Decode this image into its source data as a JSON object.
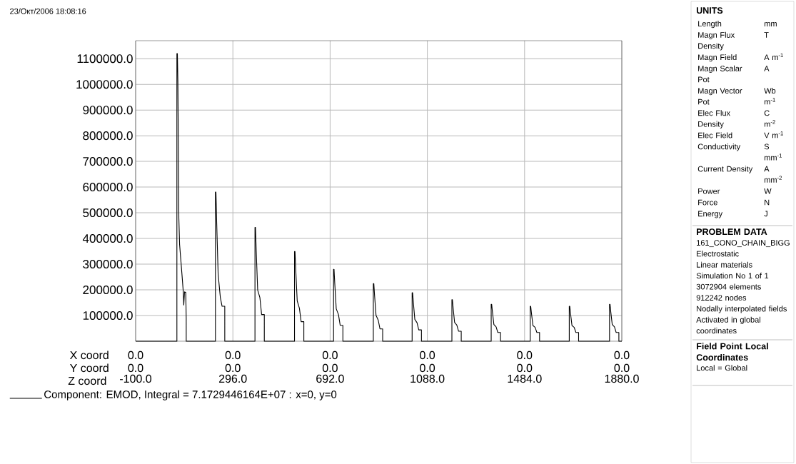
{
  "chart_data": [
    {
      "type": "line",
      "annotations": [
        "23/Окт/2006 18:08:16",
        "X coord",
        "0.0",
        "0.0",
        "0.0",
        "0.0",
        "0.0",
        "0.0",
        "Y coord",
        "0.0",
        "0.0",
        "0.0",
        "0.0",
        "0.0",
        "0.0"
      ],
      "xlabel": "Z coord",
      "xlim": [
        -100,
        1880
      ],
      "ylim": [
        0,
        1170000
      ],
      "xticks": [
        {
          "value": -100,
          "label": "-100.0"
        },
        {
          "value": 296,
          "label": "296.0"
        },
        {
          "value": 692,
          "label": "692.0"
        },
        {
          "value": 1088,
          "label": "1088.0"
        },
        {
          "value": 1484,
          "label": "1484.0"
        },
        {
          "value": 1880,
          "label": "1880.0"
        }
      ],
      "yticks": [
        {
          "value": 100000,
          "label": "100000.0"
        },
        {
          "value": 200000,
          "label": "200000.0"
        },
        {
          "value": 300000,
          "label": "300000.0"
        },
        {
          "value": 400000,
          "label": "400000.0"
        },
        {
          "value": 500000,
          "label": "500000.0"
        },
        {
          "value": 600000,
          "label": "600000.0"
        },
        {
          "value": 700000,
          "label": "700000.0"
        },
        {
          "value": 800000,
          "label": "800000.0"
        },
        {
          "value": 900000,
          "label": "900000.0"
        },
        {
          "value": 1000000,
          "label": "1000000.0"
        },
        {
          "value": 1100000,
          "label": "1100000.0"
        }
      ],
      "grid": true,
      "legend": "bottom",
      "marker": "none",
      "line_style": "solid",
      "series": [
        {
          "name": "Component: EMOD, Integral = 7.1729446164E+07 : x=0, y=0",
          "color": "#000000",
          "x": [
            -100,
            68,
            68,
            70,
            72,
            74,
            76,
            79,
            89,
            94,
            96,
            99,
            104,
            106,
            106,
            225,
            225,
            227,
            230,
            236,
            245,
            252,
            263,
            263,
            386,
            386,
            388,
            391,
            397,
            406,
            413,
            424,
            424,
            547,
            547,
            549,
            552,
            558,
            567,
            574,
            585,
            585,
            706,
            706,
            708,
            711,
            717,
            726,
            733,
            744,
            744,
            868,
            868,
            870,
            873,
            879,
            888,
            895,
            906,
            906,
            1026,
            1026,
            1028,
            1031,
            1037,
            1046,
            1053,
            1064,
            1064,
            1188,
            1188,
            1190,
            1193,
            1199,
            1208,
            1215,
            1226,
            1226,
            1348,
            1348,
            1350,
            1353,
            1359,
            1368,
            1375,
            1386,
            1386,
            1507,
            1507,
            1509,
            1512,
            1518,
            1527,
            1534,
            1545,
            1545,
            1666,
            1666,
            1668,
            1671,
            1677,
            1686,
            1693,
            1704,
            1704,
            1830,
            1830,
            1832,
            1835,
            1841,
            1850,
            1857,
            1868,
            1868,
            1880
          ],
          "values": [
            0,
            0,
            1120000,
            1120000,
            1010000,
            757000,
            479000,
            377000,
            256000,
            192000,
            141000,
            192000,
            190000,
            90000,
            0,
            0,
            581000,
            581000,
            465000,
            261000,
            170000,
            136000,
            136000,
            0,
            0,
            443000,
            443000,
            354000,
            199000,
            170000,
            104000,
            104000,
            0,
            0,
            349000,
            349000,
            279000,
            157000,
            128000,
            76000,
            76000,
            0,
            0,
            280000,
            280000,
            224000,
            126000,
            104000,
            62000,
            62000,
            0,
            0,
            224000,
            224000,
            179000,
            101000,
            82000,
            48000,
            48000,
            0,
            0,
            189000,
            189000,
            151000,
            85000,
            72000,
            44000,
            44000,
            0,
            0,
            162000,
            162000,
            130000,
            73000,
            63000,
            39000,
            39000,
            0,
            0,
            144000,
            144000,
            115000,
            65000,
            56000,
            34000,
            34000,
            0,
            0,
            136000,
            136000,
            109000,
            61000,
            54000,
            34000,
            34000,
            0,
            0,
            136000,
            136000,
            109000,
            61000,
            54000,
            34000,
            34000,
            0,
            0,
            144000,
            144000,
            115000,
            65000,
            56000,
            34000,
            34000,
            0,
            0
          ]
        }
      ]
    },
    {
      "type": "other",
      "title": "UNITS",
      "annotations": [
        "Length",
        "mm",
        "Magn Flux Density",
        "T",
        "Magn Field",
        "A m$^{-1}$",
        "Magn Scalar Pot",
        "A",
        "Magn Vector Pot",
        "Wb m$^{-1}$",
        "Elec Flux Density",
        "C m$^{-2}$",
        "Elec Field",
        "V m$^{-1}$",
        "Conductivity",
        "S mm$^{-1}$",
        "Current Density",
        "A mm$^{-2}$",
        "Power",
        "W",
        "Force",
        "N",
        "Energy",
        "J"
      ]
    },
    {
      "type": "other",
      "title": "PROBLEM DATA",
      "annotations": [
        "161_CONO_CHAIN_BIGG",
        "Electrostatic",
        "Linear materials",
        "Simulation No 1 of 1",
        "3072904 elements",
        "912242 nodes",
        "Nodally interpolated fields",
        "Activated in global coordinates"
      ]
    },
    {
      "type": "other",
      "title": "Field Point Local Coordinates",
      "annotations": [
        "Local = Global"
      ]
    }
  ]
}
